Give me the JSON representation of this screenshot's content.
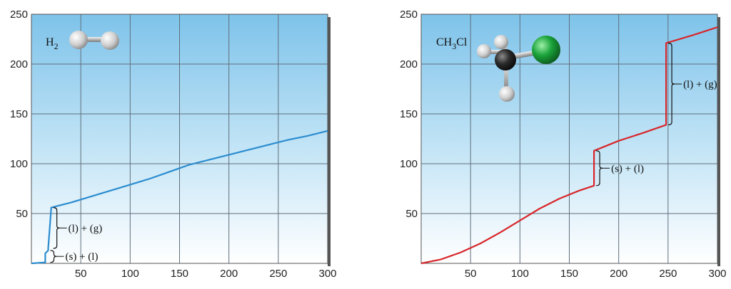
{
  "chart_data": [
    {
      "type": "line",
      "label": "H",
      "label_sub": "2",
      "label_after": "",
      "line_color": "#2b8ccf",
      "xlim": [
        0,
        300
      ],
      "ylim": [
        0,
        250
      ],
      "x_ticks": [
        50,
        100,
        150,
        200,
        250,
        300
      ],
      "y_ticks": [
        50,
        100,
        150,
        200,
        250
      ],
      "series": [
        {
          "x": [
            0,
            14,
            14,
            17,
            17,
            20,
            20,
            40,
            60,
            80,
            100,
            120,
            140,
            160,
            180,
            200,
            220,
            240,
            260,
            280,
            300
          ],
          "y": [
            0,
            1,
            10,
            13,
            15,
            55,
            56,
            61,
            67,
            73,
            79,
            85,
            92,
            99,
            104,
            109,
            114,
            119,
            124,
            128,
            133
          ]
        }
      ],
      "annotations": [
        {
          "text": "(l) + (g)",
          "x": 20,
          "y1": 15,
          "y2": 56
        },
        {
          "text": "(s) + (l)",
          "x": 17,
          "y1": 1,
          "y2": 13
        }
      ],
      "molecule": [
        {
          "name": "hydrogen-atom",
          "color": "#d8d8d8"
        },
        {
          "name": "hydrogen-atom",
          "color": "#d8d8d8"
        }
      ]
    },
    {
      "type": "line",
      "label": "CH",
      "label_sub": "3",
      "label_after": "Cl",
      "line_color": "#d8262a",
      "xlim": [
        0,
        300
      ],
      "ylim": [
        0,
        250
      ],
      "x_ticks": [
        50,
        100,
        150,
        200,
        250,
        300
      ],
      "y_ticks": [
        50,
        100,
        150,
        200,
        250
      ],
      "series": [
        {
          "x": [
            0,
            20,
            40,
            60,
            80,
            100,
            120,
            140,
            160,
            175,
            175,
            200,
            225,
            248,
            248,
            275,
            300
          ],
          "y": [
            0,
            4,
            11,
            20,
            31,
            43,
            55,
            65,
            73,
            78,
            113,
            123,
            131,
            139,
            221,
            229,
            237
          ]
        }
      ],
      "annotations": [
        {
          "text": "(s) + (l)",
          "x": 175,
          "y1": 78,
          "y2": 113
        },
        {
          "text": "(l) + (g)",
          "x": 248,
          "y1": 139,
          "y2": 221
        }
      ],
      "molecule": [
        {
          "name": "carbon-atom",
          "color": "#2b2b2b"
        },
        {
          "name": "chlorine-atom",
          "color": "#1f9e3a"
        },
        {
          "name": "hydrogen-atom",
          "color": "#d8d8d8"
        }
      ]
    }
  ]
}
